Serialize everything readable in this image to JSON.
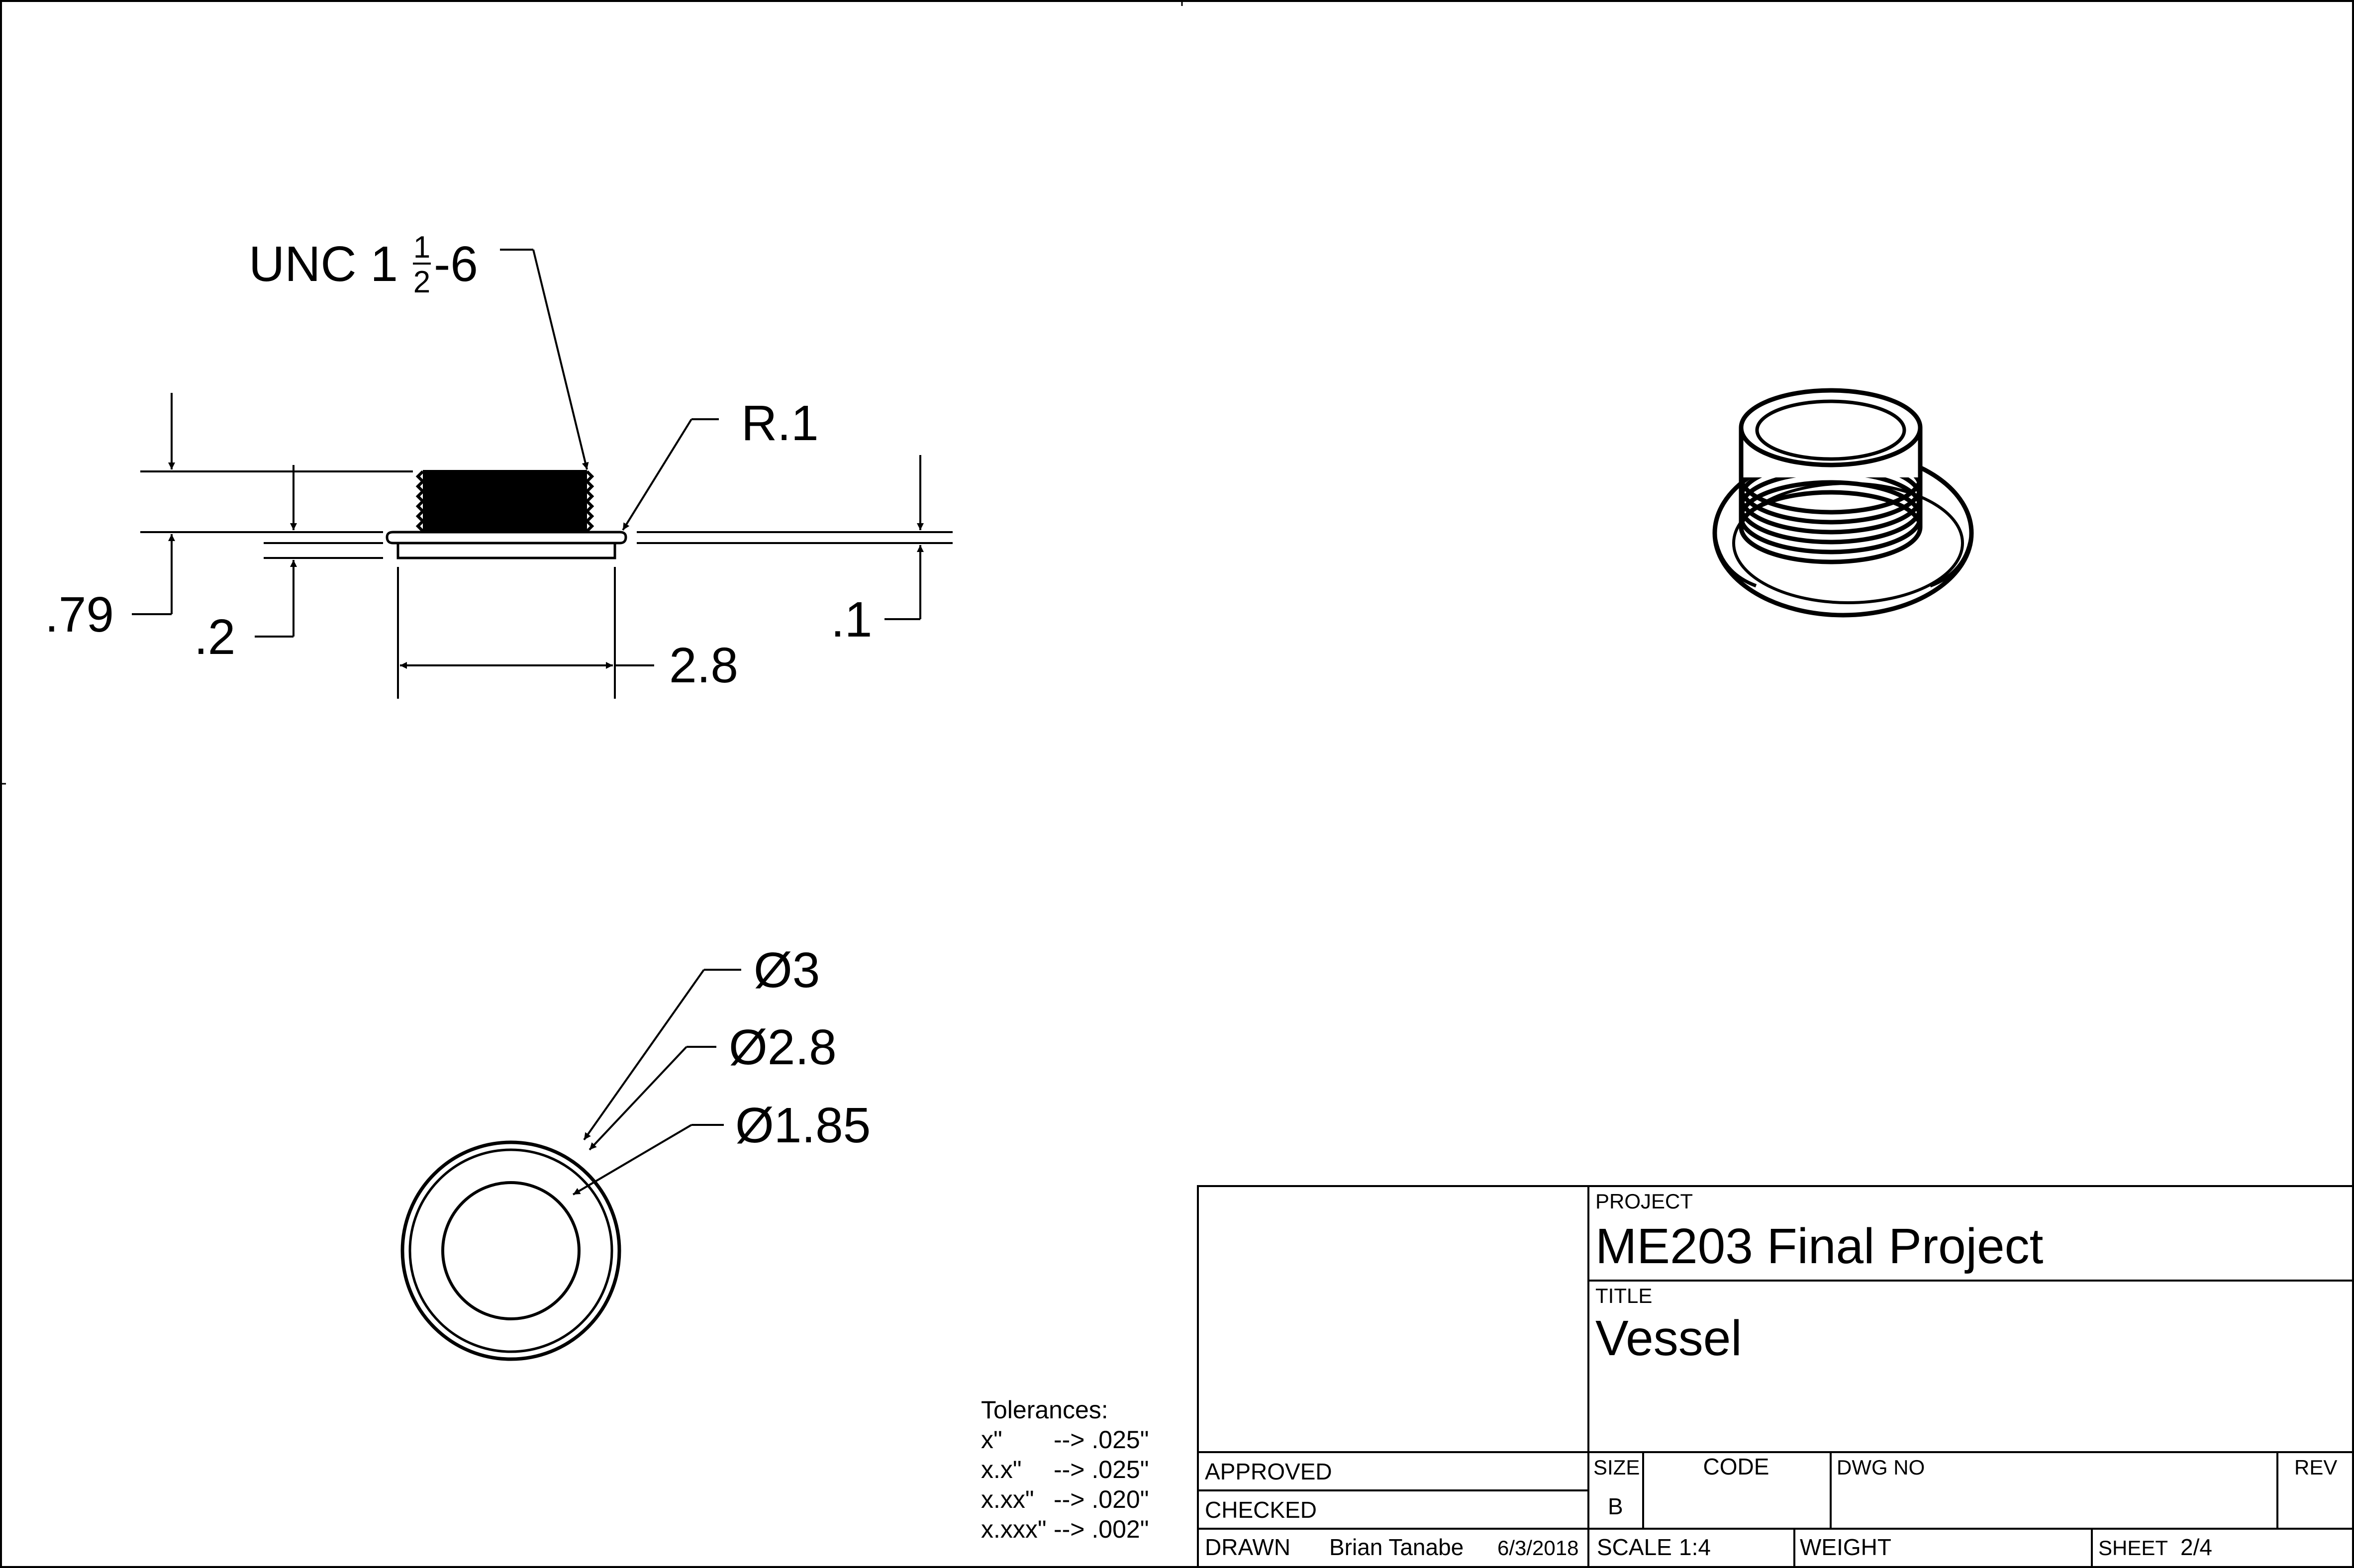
{
  "drawing": {
    "side_view": {
      "thread_callout": {
        "prefix": "UNC 1",
        "frac_num": "1",
        "frac_den": "2",
        "suffix": "-6"
      },
      "radius_label": "R.1",
      "total_height": ".79",
      "thread_height": ".2",
      "flange_thickness": ".1",
      "flange_width": "2.8"
    },
    "top_view": {
      "outer_diameter": "Ø3",
      "flange_diameter": "Ø2.8",
      "inner_diameter": "Ø1.85"
    }
  },
  "tolerances": {
    "heading": "Tolerances:",
    "rows": [
      {
        "format": "x\"",
        "value": "--> .025\""
      },
      {
        "format": "x.x\"",
        "value": "--> .025\""
      },
      {
        "format": "x.xx\"",
        "value": "--> .020\""
      },
      {
        "format": "x.xxx\"",
        "value": "--> .002\""
      }
    ]
  },
  "title_block": {
    "project_label": "PROJECT",
    "project": "ME203 Final Project",
    "title_label": "TITLE",
    "title": "Vessel",
    "approved_label": "APPROVED",
    "checked_label": "CHECKED",
    "drawn_label": "DRAWN",
    "drawn_by": "Brian Tanabe",
    "drawn_date": "6/3/2018",
    "size_label": "SIZE",
    "size": "B",
    "code_label": "CODE",
    "dwg_no_label": "DWG NO",
    "rev_label": "REV",
    "scale_label": "SCALE",
    "scale": "1:4",
    "weight_label": "WEIGHT",
    "sheet_label": "SHEET",
    "sheet": "2/4"
  }
}
